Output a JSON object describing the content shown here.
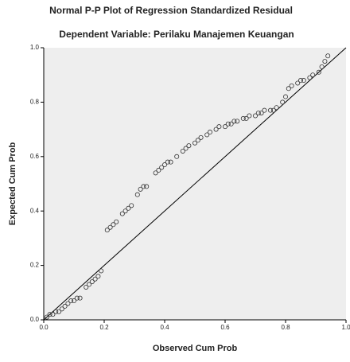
{
  "chart_data": {
    "type": "scatter",
    "title": "Normal P-P Plot of Regression Standardized Residual",
    "subtitle": "Dependent Variable: Perilaku Manajemen Keuangan",
    "x_label": "Observed Cum Prob",
    "y_label": "Expected Cum Prob",
    "marker_color": "#333333",
    "line_color": "#000000",
    "x": [
      0.01,
      0.02,
      0.03,
      0.04,
      0.05,
      0.06,
      0.07,
      0.08,
      0.09,
      0.1,
      0.11,
      0.12,
      0.14,
      0.15,
      0.16,
      0.17,
      0.18,
      0.19,
      0.21,
      0.22,
      0.23,
      0.24,
      0.26,
      0.27,
      0.28,
      0.29,
      0.31,
      0.32,
      0.33,
      0.34,
      0.37,
      0.38,
      0.39,
      0.4,
      0.41,
      0.42,
      0.44,
      0.46,
      0.47,
      0.48,
      0.5,
      0.51,
      0.52,
      0.54,
      0.55,
      0.57,
      0.58,
      0.6,
      0.61,
      0.62,
      0.63,
      0.64,
      0.66,
      0.67,
      0.68,
      0.7,
      0.71,
      0.72,
      0.73,
      0.75,
      0.76,
      0.77,
      0.79,
      0.8,
      0.81,
      0.82,
      0.84,
      0.85,
      0.86,
      0.88,
      0.89,
      0.91,
      0.92,
      0.93,
      0.94
    ],
    "values": [
      0.01,
      0.02,
      0.02,
      0.03,
      0.03,
      0.04,
      0.05,
      0.06,
      0.07,
      0.07,
      0.08,
      0.08,
      0.12,
      0.13,
      0.14,
      0.15,
      0.16,
      0.18,
      0.33,
      0.34,
      0.35,
      0.36,
      0.39,
      0.4,
      0.41,
      0.42,
      0.46,
      0.48,
      0.49,
      0.49,
      0.54,
      0.55,
      0.56,
      0.57,
      0.58,
      0.58,
      0.6,
      0.62,
      0.63,
      0.64,
      0.65,
      0.66,
      0.67,
      0.68,
      0.69,
      0.7,
      0.71,
      0.71,
      0.72,
      0.72,
      0.73,
      0.73,
      0.74,
      0.74,
      0.75,
      0.75,
      0.76,
      0.76,
      0.77,
      0.77,
      0.77,
      0.78,
      0.8,
      0.82,
      0.85,
      0.86,
      0.87,
      0.88,
      0.88,
      0.89,
      0.9,
      0.91,
      0.93,
      0.95,
      0.97
    ],
    "xlim": [
      0,
      1
    ],
    "ylim": [
      0,
      1
    ],
    "xticks": [
      {
        "value": 0,
        "label": "0.0"
      },
      {
        "value": 0.2,
        "label": "0.2"
      },
      {
        "value": 0.4,
        "label": "0.4"
      },
      {
        "value": 0.6,
        "label": "0.6"
      },
      {
        "value": 0.8,
        "label": "0.8"
      },
      {
        "value": 1,
        "label": "1.0"
      }
    ],
    "yticks": [
      {
        "value": 0,
        "label": "0.0"
      },
      {
        "value": 0.2,
        "label": "0.2"
      },
      {
        "value": 0.4,
        "label": "0.4"
      },
      {
        "value": 0.6,
        "label": "0.6"
      },
      {
        "value": 0.8,
        "label": "0.8"
      },
      {
        "value": 1,
        "label": "1.0"
      }
    ]
  }
}
